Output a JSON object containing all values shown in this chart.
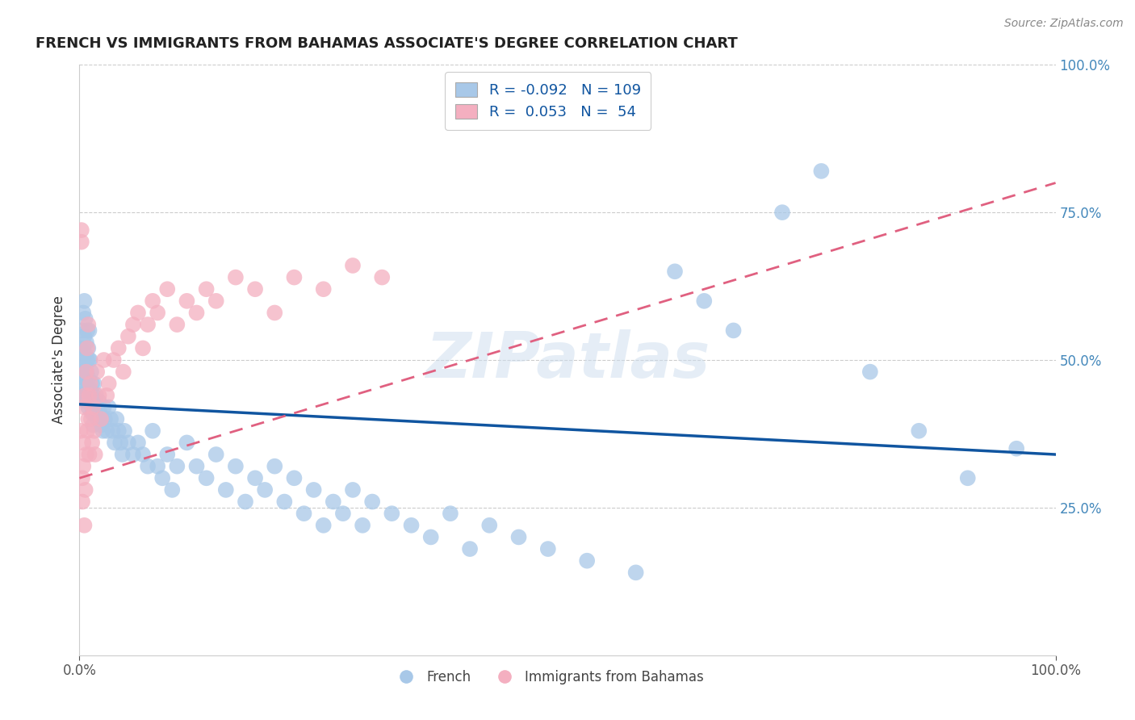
{
  "title": "FRENCH VS IMMIGRANTS FROM BAHAMAS ASSOCIATE'S DEGREE CORRELATION CHART",
  "source": "Source: ZipAtlas.com",
  "ylabel": "Associate's Degree",
  "R_french": -0.092,
  "N_french": 109,
  "R_bahamas": 0.053,
  "N_bahamas": 54,
  "french_color": "#a8c8e8",
  "bahamas_color": "#f4afc0",
  "french_line_color": "#1055a0",
  "bahamas_line_color": "#e06080",
  "background_color": "#ffffff",
  "grid_color": "#cccccc",
  "title_color": "#222222",
  "source_color": "#888888",
  "legend_R_color": "#1055a0",
  "xmin": 0.0,
  "xmax": 1.0,
  "ymin": 0.0,
  "ymax": 1.0,
  "french_x": [
    0.001,
    0.002,
    0.002,
    0.003,
    0.003,
    0.003,
    0.004,
    0.004,
    0.004,
    0.005,
    0.005,
    0.005,
    0.005,
    0.006,
    0.006,
    0.006,
    0.007,
    0.007,
    0.007,
    0.008,
    0.008,
    0.008,
    0.009,
    0.009,
    0.009,
    0.01,
    0.01,
    0.01,
    0.011,
    0.011,
    0.012,
    0.012,
    0.013,
    0.013,
    0.014,
    0.014,
    0.015,
    0.015,
    0.016,
    0.017,
    0.018,
    0.019,
    0.02,
    0.021,
    0.022,
    0.023,
    0.024,
    0.025,
    0.026,
    0.028,
    0.03,
    0.032,
    0.034,
    0.036,
    0.038,
    0.04,
    0.042,
    0.044,
    0.046,
    0.05,
    0.055,
    0.06,
    0.065,
    0.07,
    0.075,
    0.08,
    0.085,
    0.09,
    0.095,
    0.1,
    0.11,
    0.12,
    0.13,
    0.14,
    0.15,
    0.16,
    0.17,
    0.18,
    0.19,
    0.2,
    0.21,
    0.22,
    0.23,
    0.24,
    0.25,
    0.26,
    0.27,
    0.28,
    0.29,
    0.3,
    0.32,
    0.34,
    0.36,
    0.38,
    0.4,
    0.42,
    0.45,
    0.48,
    0.52,
    0.57,
    0.61,
    0.64,
    0.67,
    0.72,
    0.76,
    0.81,
    0.86,
    0.91,
    0.96
  ],
  "french_y": [
    0.52,
    0.48,
    0.44,
    0.55,
    0.5,
    0.46,
    0.58,
    0.52,
    0.47,
    0.6,
    0.54,
    0.49,
    0.44,
    0.57,
    0.51,
    0.46,
    0.53,
    0.48,
    0.43,
    0.55,
    0.5,
    0.45,
    0.52,
    0.47,
    0.42,
    0.55,
    0.5,
    0.45,
    0.5,
    0.45,
    0.48,
    0.43,
    0.46,
    0.41,
    0.44,
    0.39,
    0.46,
    0.41,
    0.43,
    0.44,
    0.42,
    0.4,
    0.43,
    0.41,
    0.39,
    0.4,
    0.38,
    0.42,
    0.4,
    0.38,
    0.42,
    0.4,
    0.38,
    0.36,
    0.4,
    0.38,
    0.36,
    0.34,
    0.38,
    0.36,
    0.34,
    0.36,
    0.34,
    0.32,
    0.38,
    0.32,
    0.3,
    0.34,
    0.28,
    0.32,
    0.36,
    0.32,
    0.3,
    0.34,
    0.28,
    0.32,
    0.26,
    0.3,
    0.28,
    0.32,
    0.26,
    0.3,
    0.24,
    0.28,
    0.22,
    0.26,
    0.24,
    0.28,
    0.22,
    0.26,
    0.24,
    0.22,
    0.2,
    0.24,
    0.18,
    0.22,
    0.2,
    0.18,
    0.16,
    0.14,
    0.65,
    0.6,
    0.55,
    0.75,
    0.82,
    0.48,
    0.38,
    0.3,
    0.35
  ],
  "bahamas_x": [
    0.001,
    0.002,
    0.002,
    0.003,
    0.003,
    0.004,
    0.004,
    0.005,
    0.005,
    0.006,
    0.006,
    0.007,
    0.007,
    0.008,
    0.008,
    0.009,
    0.009,
    0.01,
    0.01,
    0.011,
    0.012,
    0.013,
    0.014,
    0.015,
    0.016,
    0.018,
    0.02,
    0.022,
    0.025,
    0.028,
    0.03,
    0.035,
    0.04,
    0.045,
    0.05,
    0.055,
    0.06,
    0.065,
    0.07,
    0.075,
    0.08,
    0.09,
    0.1,
    0.11,
    0.12,
    0.13,
    0.14,
    0.16,
    0.18,
    0.2,
    0.22,
    0.25,
    0.28,
    0.31
  ],
  "bahamas_y": [
    0.38,
    0.7,
    0.72,
    0.3,
    0.26,
    0.36,
    0.32,
    0.42,
    0.22,
    0.44,
    0.28,
    0.48,
    0.34,
    0.52,
    0.38,
    0.56,
    0.4,
    0.44,
    0.34,
    0.46,
    0.4,
    0.36,
    0.42,
    0.38,
    0.34,
    0.48,
    0.44,
    0.4,
    0.5,
    0.44,
    0.46,
    0.5,
    0.52,
    0.48,
    0.54,
    0.56,
    0.58,
    0.52,
    0.56,
    0.6,
    0.58,
    0.62,
    0.56,
    0.6,
    0.58,
    0.62,
    0.6,
    0.64,
    0.62,
    0.58,
    0.64,
    0.62,
    0.66,
    0.64
  ]
}
